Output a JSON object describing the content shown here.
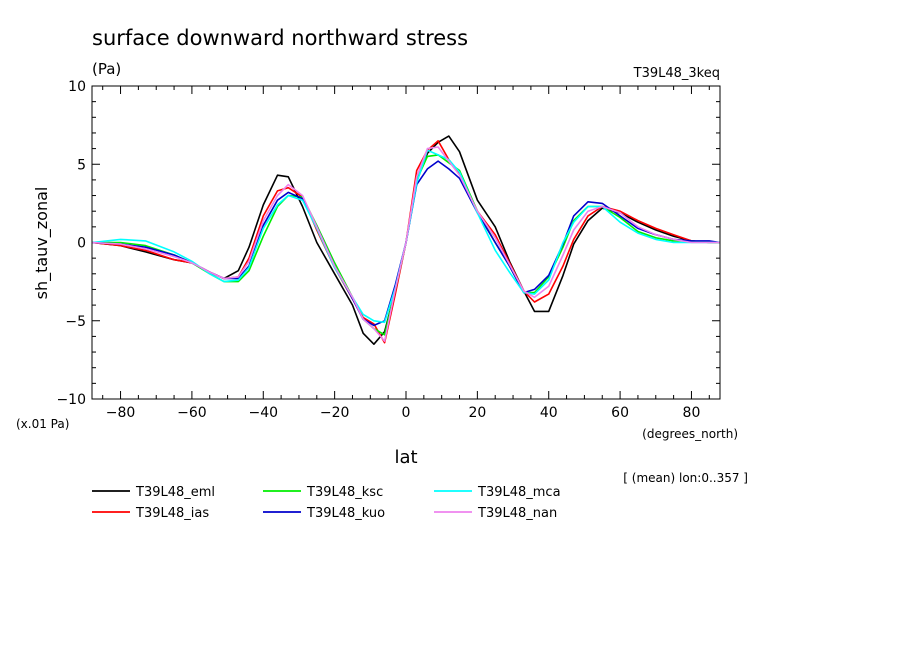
{
  "chart_data": {
    "type": "line",
    "title": "surface downward northward stress",
    "units": "(Pa)",
    "experiment": "T39L48_3keq",
    "xlabel": "lat",
    "xunits": "(degrees_north)",
    "ylabel": "sh_tauv_zonal",
    "yscale_note": "(x.01 Pa)",
    "averaging_note": "[ (mean) lon:0..357 ]",
    "xlim": [
      -88,
      88
    ],
    "ylim": [
      -10,
      10
    ],
    "xticks": [
      -80,
      -60,
      -40,
      -20,
      0,
      20,
      40,
      60,
      80
    ],
    "yticks": [
      -10,
      -5,
      0,
      5,
      10
    ],
    "xtick_labels": [
      "−80",
      "−60",
      "−40",
      "−20",
      "0",
      "20",
      "40",
      "60",
      "80"
    ],
    "ytick_labels": [
      "−10",
      "−5",
      "0",
      "5",
      "10"
    ],
    "x": [
      -88,
      -80,
      -73,
      -65,
      -60,
      -55,
      -51,
      -47,
      -44,
      -40,
      -36,
      -33,
      -29,
      -25,
      -20,
      -15,
      -12,
      -9,
      -6,
      -3,
      0,
      3,
      6,
      9,
      12,
      15,
      20,
      25,
      29,
      33,
      36,
      40,
      44,
      47,
      51,
      55,
      60,
      65,
      70,
      75,
      80,
      85,
      88
    ],
    "series": [
      {
        "name": "T39L48_eml",
        "color": "#000000",
        "values": [
          0,
          -0.2,
          -0.6,
          -1.1,
          -1.3,
          -1.9,
          -2.3,
          -1.8,
          -0.3,
          2.4,
          4.3,
          4.2,
          2.3,
          0.0,
          -2.0,
          -4.0,
          -5.8,
          -6.5,
          -5.7,
          -3.1,
          0.0,
          3.9,
          5.7,
          6.4,
          6.8,
          5.8,
          2.7,
          1.0,
          -1.2,
          -3.1,
          -4.4,
          -4.4,
          -2.1,
          -0.1,
          1.4,
          2.2,
          1.9,
          1.3,
          0.8,
          0.4,
          0.1,
          0.0,
          0.0
        ]
      },
      {
        "name": "T39L48_ias",
        "color": "#ff0000",
        "values": [
          0,
          -0.2,
          -0.5,
          -1.1,
          -1.3,
          -1.9,
          -2.3,
          -2.2,
          -1.0,
          1.7,
          3.3,
          3.5,
          2.9,
          0.8,
          -1.6,
          -3.6,
          -4.8,
          -5.2,
          -6.4,
          -3.3,
          0.0,
          4.6,
          5.9,
          6.5,
          5.3,
          4.4,
          2.0,
          0.5,
          -1.3,
          -3.1,
          -3.8,
          -3.3,
          -1.5,
          0.2,
          1.7,
          2.3,
          2.0,
          1.4,
          0.9,
          0.5,
          0.1,
          0.0,
          0.0
        ]
      },
      {
        "name": "T39L48_ksc",
        "color": "#00ee00",
        "values": [
          0,
          0.0,
          -0.2,
          -0.8,
          -1.3,
          -2.0,
          -2.5,
          -2.5,
          -1.8,
          0.4,
          2.3,
          3.0,
          2.9,
          1.1,
          -1.3,
          -3.5,
          -4.9,
          -5.5,
          -5.9,
          -3.0,
          0.0,
          4.0,
          5.5,
          5.6,
          5.1,
          4.6,
          2.0,
          0.0,
          -1.5,
          -3.2,
          -3.2,
          -2.2,
          -0.3,
          1.4,
          2.3,
          2.3,
          1.6,
          0.7,
          0.3,
          0.1,
          0.1,
          0.0,
          0.0
        ]
      },
      {
        "name": "T39L48_kuo",
        "color": "#0000cc",
        "values": [
          0,
          -0.1,
          -0.3,
          -0.8,
          -1.3,
          -1.9,
          -2.3,
          -2.3,
          -1.5,
          1.1,
          2.7,
          3.2,
          2.8,
          1.0,
          -1.5,
          -3.6,
          -4.9,
          -5.3,
          -5.0,
          -2.7,
          0.0,
          3.7,
          4.7,
          5.2,
          4.7,
          4.1,
          1.9,
          0.0,
          -1.5,
          -3.2,
          -3.0,
          -2.1,
          -0.1,
          1.7,
          2.6,
          2.5,
          1.7,
          0.9,
          0.5,
          0.2,
          0.1,
          0.1,
          0.0
        ]
      },
      {
        "name": "T39L48_mca",
        "color": "#00ffff",
        "values": [
          0,
          0.2,
          0.1,
          -0.6,
          -1.2,
          -2.0,
          -2.5,
          -2.4,
          -1.6,
          0.9,
          2.4,
          3.0,
          2.7,
          0.9,
          -1.6,
          -3.5,
          -4.6,
          -5.0,
          -5.1,
          -2.9,
          0.0,
          3.8,
          5.9,
          5.6,
          5.3,
          4.5,
          1.9,
          -0.5,
          -1.9,
          -3.2,
          -3.3,
          -2.4,
          0.0,
          1.3,
          2.3,
          2.3,
          1.3,
          0.6,
          0.2,
          0.0,
          0.0,
          0.0,
          0.0
        ]
      },
      {
        "name": "T39L48_nan",
        "color": "#ee82ee",
        "values": [
          0,
          -0.1,
          -0.4,
          -0.9,
          -1.3,
          -1.9,
          -2.3,
          -2.2,
          -1.2,
          1.4,
          3.0,
          3.7,
          3.0,
          1.0,
          -1.5,
          -3.5,
          -4.9,
          -5.5,
          -6.3,
          -3.0,
          0.0,
          4.2,
          6.0,
          6.1,
          5.2,
          4.3,
          2.0,
          0.3,
          -1.4,
          -3.1,
          -3.5,
          -2.8,
          -0.8,
          0.8,
          2.0,
          2.3,
          1.9,
          1.0,
          0.5,
          0.2,
          0.0,
          0.0,
          0.0
        ]
      }
    ]
  }
}
